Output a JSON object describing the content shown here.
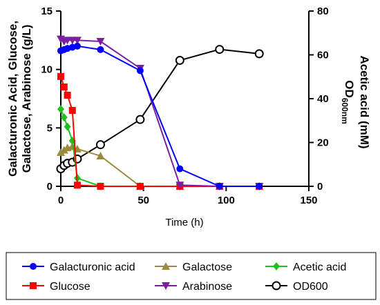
{
  "chart_data": {
    "type": "line",
    "xlabel": "Time (h)",
    "ylabel_left_lines": [
      "Galacturonic Acid, Glucose,",
      "Galactose, Arabinose (g/L)"
    ],
    "ylabel_right_main": "Acetic acid (mM)",
    "ylabel_right_od": "OD",
    "ylabel_right_od_sub": "600nm",
    "xlim": [
      0,
      150
    ],
    "ylim_left": [
      0,
      15
    ],
    "ylim_right": [
      0,
      80
    ],
    "xticks": [
      "0",
      "50",
      "100",
      "150"
    ],
    "yticks_left": [
      "0",
      "5",
      "10",
      "15"
    ],
    "yticks_right": [
      "0",
      "20",
      "40",
      "60",
      "80"
    ],
    "grid": false,
    "legend_position": "bottom",
    "series": [
      {
        "name": "Galacturonic acid",
        "axis": "left",
        "color": "#0000ff",
        "marker": "circle",
        "x": [
          0,
          2,
          4,
          7,
          10,
          24,
          48,
          72,
          96,
          120
        ],
        "y": [
          11.6,
          11.7,
          11.8,
          11.9,
          12.0,
          11.7,
          9.9,
          1.5,
          0.0,
          0.0
        ]
      },
      {
        "name": "Glucose",
        "axis": "left",
        "color": "#ff0000",
        "marker": "square",
        "x": [
          0,
          2,
          4,
          7,
          10,
          24,
          48,
          72,
          96,
          120
        ],
        "y": [
          9.4,
          8.5,
          7.8,
          6.5,
          0.1,
          0.0,
          0.0,
          0.0,
          0.0,
          0.0
        ]
      },
      {
        "name": "Galactose",
        "axis": "left",
        "color": "#9c8a3c",
        "marker": "triangle-up",
        "x": [
          0,
          2,
          4,
          7,
          10,
          24,
          48,
          72,
          96,
          120
        ],
        "y": [
          2.9,
          3.1,
          3.3,
          3.4,
          3.2,
          2.6,
          0.0,
          0.0,
          0.0,
          0.0
        ]
      },
      {
        "name": "Arabinose",
        "axis": "left",
        "color": "#7a1fa2",
        "marker": "triangle-down",
        "x": [
          0,
          2,
          4,
          7,
          10,
          24,
          48,
          72,
          96,
          120
        ],
        "y": [
          12.6,
          12.4,
          12.5,
          12.5,
          12.5,
          12.4,
          10.1,
          0.1,
          0.0,
          0.0
        ]
      },
      {
        "name": "Acetic acid",
        "axis": "left",
        "color": "#1ec01e",
        "marker": "diamond",
        "x": [
          0,
          2,
          4,
          7,
          10,
          24,
          48,
          72,
          96,
          120
        ],
        "y": [
          6.6,
          5.9,
          5.1,
          3.9,
          0.7,
          0.0,
          0.0,
          0.0,
          0.0,
          0.0
        ]
      },
      {
        "name": "OD600",
        "axis": "right",
        "color": "#000000",
        "marker": "open-circle",
        "x": [
          0,
          2,
          4,
          7,
          10,
          24,
          48,
          72,
          96,
          120
        ],
        "y": [
          8,
          9.5,
          10.5,
          11,
          12.5,
          19,
          30.5,
          57.5,
          62.5,
          60.5
        ]
      }
    ]
  }
}
